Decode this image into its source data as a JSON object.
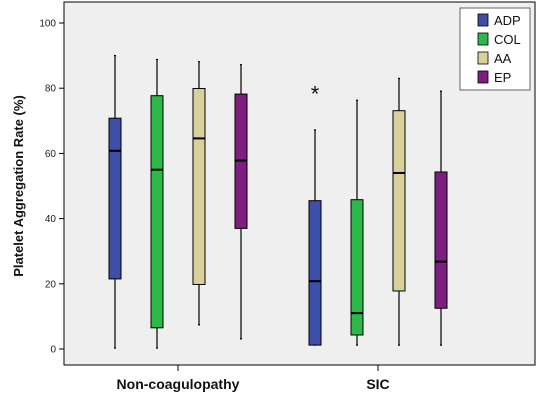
{
  "chart_data": {
    "type": "box",
    "ylabel": "Platelet Aggregation Rate (%)",
    "ylim": [
      0,
      100
    ],
    "yticks": [
      0,
      20,
      40,
      60,
      80,
      100
    ],
    "categories": [
      "Non-coagulopathy",
      "SIC"
    ],
    "legend_position": "top-right",
    "grid": false,
    "plot_background": "#efefef",
    "series": [
      {
        "name": "ADP",
        "color": "#3d4fa6",
        "boxes": [
          {
            "min": 0.3,
            "q1": 21.5,
            "median": 60.8,
            "q3": 70.8,
            "max": 90
          },
          {
            "min": 1.2,
            "q1": 1.2,
            "median": 20.8,
            "q3": 45.5,
            "max": 67.2,
            "outliers": [
              79.6
            ]
          }
        ]
      },
      {
        "name": "COL",
        "color": "#2db84a",
        "boxes": [
          {
            "min": 0.3,
            "q1": 6.5,
            "median": 55.0,
            "q3": 77.7,
            "max": 88.8
          },
          {
            "min": 1.2,
            "q1": 4.3,
            "median": 11.0,
            "q3": 45.8,
            "max": 76.3
          }
        ]
      },
      {
        "name": "AA",
        "color": "#d9d19a",
        "boxes": [
          {
            "min": 7.4,
            "q1": 19.8,
            "median": 64.6,
            "q3": 79.9,
            "max": 88.1
          },
          {
            "min": 1.2,
            "q1": 17.8,
            "median": 54.0,
            "q3": 73.1,
            "max": 83.0
          }
        ]
      },
      {
        "name": "EP",
        "color": "#7d1f7e",
        "boxes": [
          {
            "min": 3.1,
            "q1": 37.0,
            "median": 57.8,
            "q3": 78.2,
            "max": 87.2
          },
          {
            "min": 1.2,
            "q1": 12.5,
            "median": 26.8,
            "q3": 54.3,
            "max": 79.1
          }
        ]
      }
    ],
    "outlier_marker": "*"
  }
}
